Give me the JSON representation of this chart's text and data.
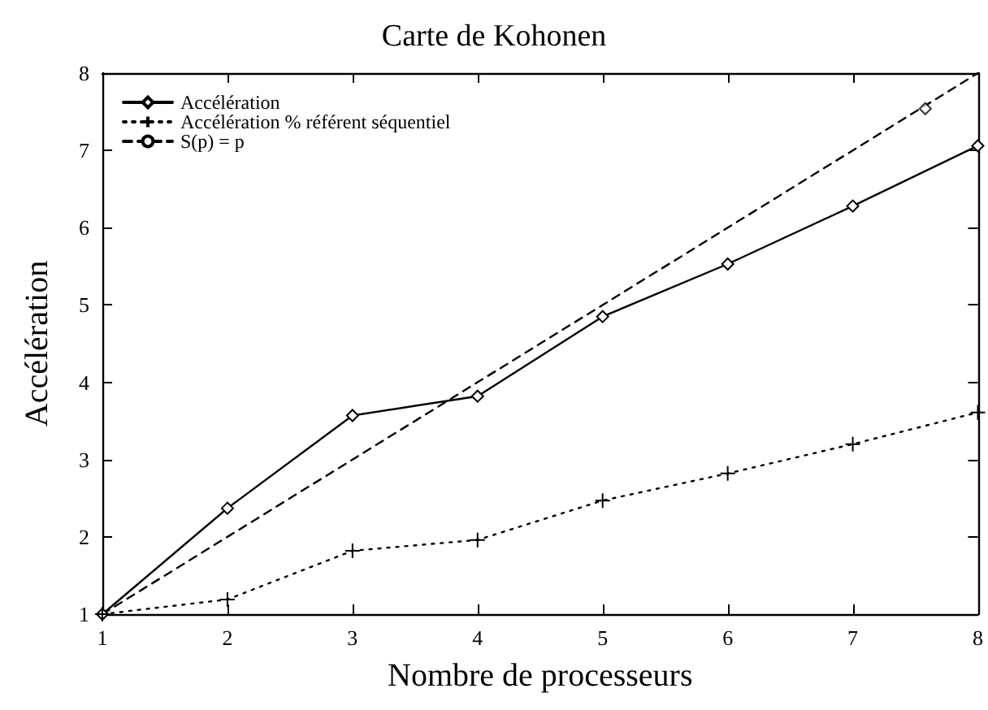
{
  "chart_data": {
    "type": "line",
    "title": "Carte de Kohonen",
    "xlabel": "Nombre de processeurs",
    "ylabel": "Accélération",
    "xlim": [
      1,
      8
    ],
    "xticks": [
      1,
      2,
      3,
      4,
      5,
      6,
      7,
      8
    ],
    "ylim": [
      1,
      8
    ],
    "yticks": [
      1,
      2,
      3,
      4,
      5,
      6,
      7,
      8
    ],
    "grid": false,
    "legend": "top left",
    "series": [
      {
        "name": "Accélération",
        "color": "#000000",
        "x": [
          1,
          2,
          3,
          4,
          5,
          6,
          7,
          8
        ],
        "values": [
          1,
          2.37,
          3.57,
          3.82,
          4.85,
          5.53,
          6.28,
          7.06
        ],
        "marker": "diamond",
        "line_style": "solid"
      },
      {
        "name": "Accélération % référent séquentiel",
        "color": "#000000",
        "x": [
          1,
          2,
          3,
          4,
          5,
          6,
          7,
          8
        ],
        "values": [
          1,
          1.19,
          1.82,
          1.96,
          2.47,
          2.82,
          3.2,
          3.61
        ],
        "marker": "cross",
        "line_style": "dotted"
      },
      {
        "name": "S(p) = p",
        "color": "#000000",
        "x": [
          1,
          8
        ],
        "values": [
          1,
          8
        ],
        "marker": "none",
        "line_style": "dashed"
      },
      {
        "type": "scatter",
        "color": "#000000",
        "x": [
          7.58
        ],
        "values": [
          7.54
        ],
        "marker": "diamond"
      }
    ]
  }
}
